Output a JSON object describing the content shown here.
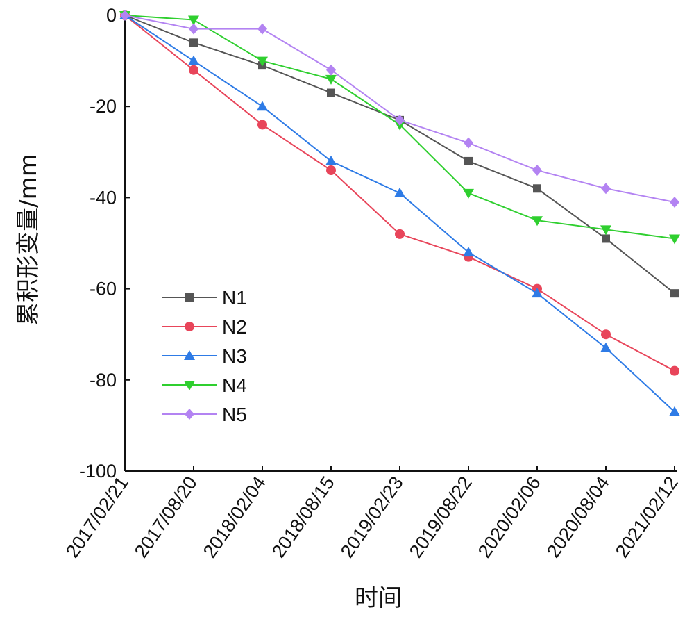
{
  "chart_data": {
    "type": "line",
    "xlabel": "时间",
    "ylabel": "累积形变量/mm",
    "ylim": [
      -100,
      0
    ],
    "yticks": [
      0,
      -20,
      -40,
      -60,
      -80,
      -100
    ],
    "categories": [
      "2017/02/21",
      "2017/08/20",
      "2018/02/04",
      "2018/08/15",
      "2019/02/23",
      "2019/08/22",
      "2020/02/06",
      "2020/08/04",
      "2021/02/12"
    ],
    "legend_position": "bottom-left",
    "grid": false,
    "series": [
      {
        "name": "N1",
        "color": "#555555",
        "marker": "square",
        "values": [
          0,
          -6,
          -11,
          -17,
          -23,
          -32,
          -38,
          -49,
          -61
        ]
      },
      {
        "name": "N2",
        "color": "#e8455a",
        "marker": "circle",
        "values": [
          0,
          -12,
          -24,
          -34,
          -48,
          -53,
          -60,
          -70,
          -78
        ]
      },
      {
        "name": "N3",
        "color": "#2e7be6",
        "marker": "triangle-up",
        "values": [
          0,
          -10,
          -20,
          -32,
          -39,
          -52,
          -61,
          -73,
          -87
        ]
      },
      {
        "name": "N4",
        "color": "#2fcf2f",
        "marker": "triangle-down",
        "values": [
          0,
          -1,
          -10,
          -14,
          -24,
          -39,
          -45,
          -47,
          -49
        ]
      },
      {
        "name": "N5",
        "color": "#b383f2",
        "marker": "diamond",
        "values": [
          0,
          -3,
          -3,
          -12,
          -23,
          -28,
          -34,
          -38,
          -41
        ]
      }
    ]
  }
}
